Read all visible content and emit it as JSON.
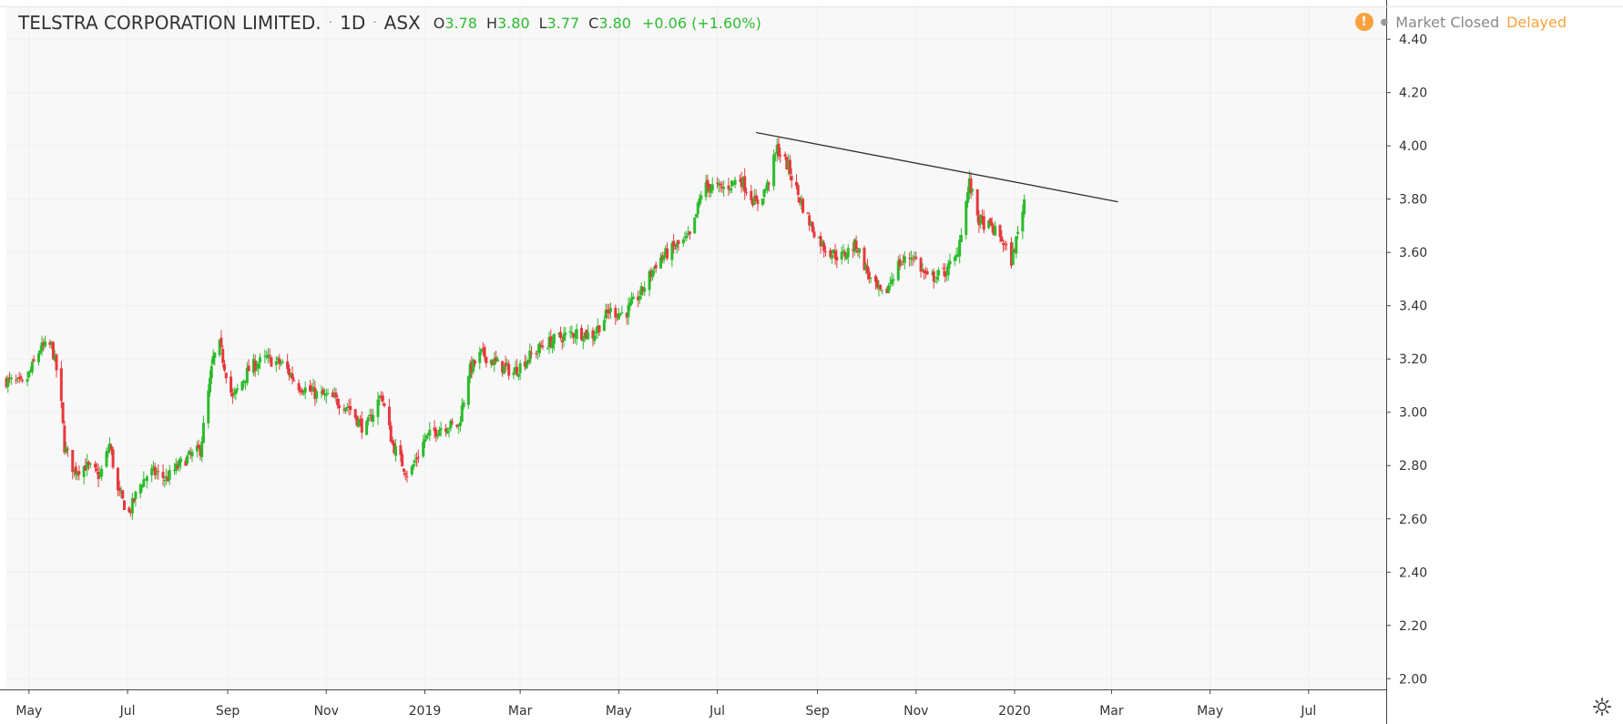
{
  "header": {
    "symbol": "TELSTRA CORPORATION LIMITED.",
    "interval": "1D",
    "exchange": "ASX",
    "ohlc": {
      "o_label": "O",
      "o": "3.78",
      "h_label": "H",
      "h": "3.80",
      "l_label": "L",
      "l": "3.77",
      "c_label": "C",
      "c": "3.80"
    },
    "change": "+0.06 (+1.60%)"
  },
  "status": {
    "warning_glyph": "!",
    "market": "Market Closed",
    "delay": "Delayed"
  },
  "colors": {
    "up": "#2dbb2d",
    "down": "#e8383d",
    "grid": "#eceef2",
    "axis": "#444444",
    "trendline": "#333333",
    "background": "#f8f8f8"
  },
  "chart_data": {
    "type": "candlestick",
    "title": "TELSTRA CORPORATION LIMITED. · 1D · ASX",
    "x_tick_labels": [
      "May",
      "Jul",
      "Sep",
      "Nov",
      "2019",
      "Mar",
      "May",
      "Jul",
      "Sep",
      "Nov",
      "2020",
      "Mar",
      "May",
      "Jul"
    ],
    "x_range": [
      "2018-04-17",
      "2020-08-18"
    ],
    "y_range": [
      1.96,
      4.52
    ],
    "y_tick_labels": [
      "4.40",
      "4.20",
      "4.00",
      "3.80",
      "3.60",
      "3.40",
      "3.20",
      "3.00",
      "2.80",
      "2.60",
      "2.40",
      "2.20",
      "2.00"
    ],
    "price_path": [
      [
        "2018-04-17",
        3.12
      ],
      [
        "2018-04-28",
        3.1
      ],
      [
        "2018-05-08",
        3.24
      ],
      [
        "2018-05-15",
        3.25
      ],
      [
        "2018-05-20",
        3.1
      ],
      [
        "2018-05-23",
        2.87
      ],
      [
        "2018-05-29",
        2.78
      ],
      [
        "2018-06-05",
        2.8
      ],
      [
        "2018-06-14",
        2.76
      ],
      [
        "2018-06-20",
        2.88
      ],
      [
        "2018-06-25",
        2.7
      ],
      [
        "2018-07-02",
        2.62
      ],
      [
        "2018-07-08",
        2.72
      ],
      [
        "2018-07-15",
        2.78
      ],
      [
        "2018-07-25",
        2.75
      ],
      [
        "2018-08-05",
        2.82
      ],
      [
        "2018-08-15",
        2.86
      ],
      [
        "2018-08-23",
        3.2
      ],
      [
        "2018-08-27",
        3.25
      ],
      [
        "2018-09-04",
        3.05
      ],
      [
        "2018-09-15",
        3.17
      ],
      [
        "2018-09-25",
        3.2
      ],
      [
        "2018-10-05",
        3.18
      ],
      [
        "2018-10-15",
        3.1
      ],
      [
        "2018-10-25",
        3.07
      ],
      [
        "2018-11-05",
        3.05
      ],
      [
        "2018-11-15",
        3.02
      ],
      [
        "2018-11-25",
        2.93
      ],
      [
        "2018-12-05",
        3.07
      ],
      [
        "2018-12-12",
        2.88
      ],
      [
        "2018-12-22",
        2.76
      ],
      [
        "2019-01-01",
        2.9
      ],
      [
        "2019-01-12",
        2.95
      ],
      [
        "2019-01-22",
        2.95
      ],
      [
        "2019-01-28",
        3.15
      ],
      [
        "2019-02-05",
        3.22
      ],
      [
        "2019-02-15",
        3.18
      ],
      [
        "2019-02-25",
        3.15
      ],
      [
        "2019-03-05",
        3.2
      ],
      [
        "2019-03-15",
        3.25
      ],
      [
        "2019-03-25",
        3.28
      ],
      [
        "2019-04-05",
        3.3
      ],
      [
        "2019-04-15",
        3.29
      ],
      [
        "2019-04-25",
        3.38
      ],
      [
        "2019-05-05",
        3.37
      ],
      [
        "2019-05-15",
        3.45
      ],
      [
        "2019-05-25",
        3.57
      ],
      [
        "2019-06-05",
        3.62
      ],
      [
        "2019-06-15",
        3.66
      ],
      [
        "2019-06-22",
        3.85
      ],
      [
        "2019-07-05",
        3.84
      ],
      [
        "2019-07-15",
        3.88
      ],
      [
        "2019-07-25",
        3.78
      ],
      [
        "2019-08-01",
        3.85
      ],
      [
        "2019-08-07",
        3.99
      ],
      [
        "2019-08-14",
        3.92
      ],
      [
        "2019-08-21",
        3.8
      ],
      [
        "2019-08-28",
        3.7
      ],
      [
        "2019-09-05",
        3.62
      ],
      [
        "2019-09-15",
        3.58
      ],
      [
        "2019-09-25",
        3.63
      ],
      [
        "2019-10-05",
        3.48
      ],
      [
        "2019-10-12",
        3.43
      ],
      [
        "2019-10-20",
        3.55
      ],
      [
        "2019-10-30",
        3.59
      ],
      [
        "2019-11-08",
        3.5
      ],
      [
        "2019-11-18",
        3.52
      ],
      [
        "2019-11-26",
        3.58
      ],
      [
        "2019-12-04",
        3.86
      ],
      [
        "2019-12-10",
        3.72
      ],
      [
        "2019-12-18",
        3.69
      ],
      [
        "2019-12-24",
        3.65
      ],
      [
        "2019-12-30",
        3.57
      ],
      [
        "2020-01-03",
        3.67
      ],
      [
        "2020-01-07",
        3.8
      ]
    ],
    "trendline": {
      "start": [
        "2019-07-25",
        4.05
      ],
      "end": [
        "2020-03-05",
        3.79
      ]
    },
    "annotations": []
  }
}
